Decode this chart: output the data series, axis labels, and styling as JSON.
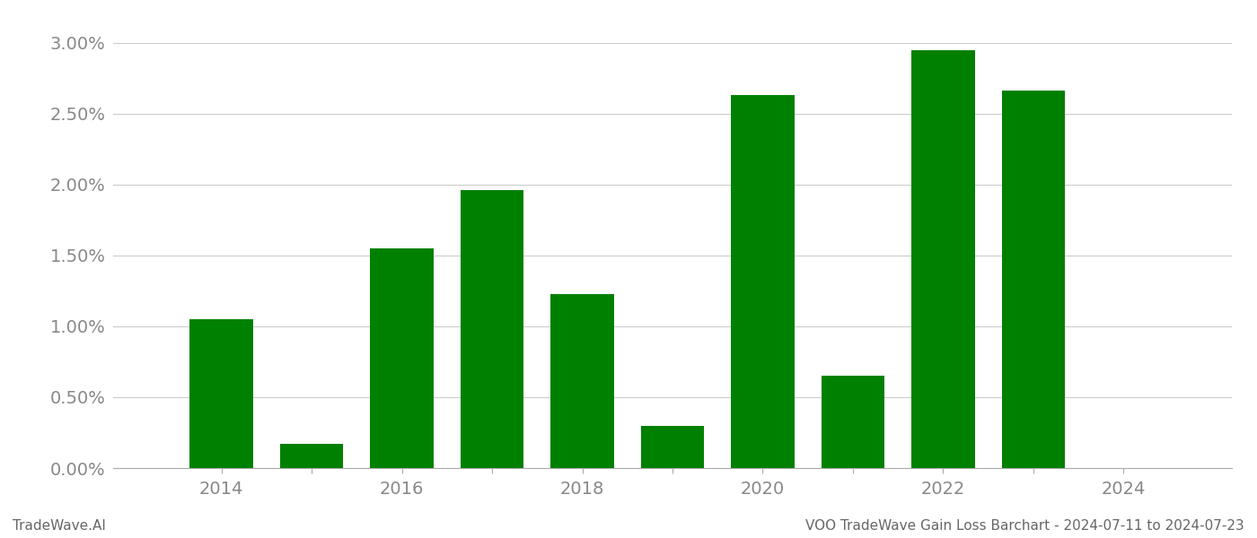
{
  "years": [
    2014,
    2015,
    2016,
    2017,
    2018,
    2019,
    2020,
    2021,
    2022,
    2023
  ],
  "values": [
    0.0105,
    0.0017,
    0.0155,
    0.0196,
    0.0123,
    0.003,
    0.0263,
    0.0065,
    0.0295,
    0.0266
  ],
  "bar_color": "#008000",
  "footer_left": "TradeWave.AI",
  "footer_right": "VOO TradeWave Gain Loss Barchart - 2024-07-11 to 2024-07-23",
  "ylim_min": 0.0,
  "ylim_max": 0.0315,
  "xlim_min": 2012.8,
  "xlim_max": 2025.2,
  "background_color": "#ffffff",
  "grid_color": "#cccccc",
  "tick_color": "#888888",
  "bar_width": 0.7,
  "yticks": [
    0.0,
    0.005,
    0.01,
    0.015,
    0.02,
    0.025,
    0.03
  ],
  "ytick_labels": [
    "0.00%",
    "0.50%",
    "1.00%",
    "1.50%",
    "2.00%",
    "2.50%",
    "3.00%"
  ],
  "xticks_labeled": [
    2014,
    2016,
    2018,
    2020,
    2022,
    2024
  ],
  "xticks_all": [
    2014,
    2015,
    2016,
    2017,
    2018,
    2019,
    2020,
    2021,
    2022,
    2023,
    2024
  ],
  "footer_fontsize": 11,
  "tick_fontsize": 14
}
